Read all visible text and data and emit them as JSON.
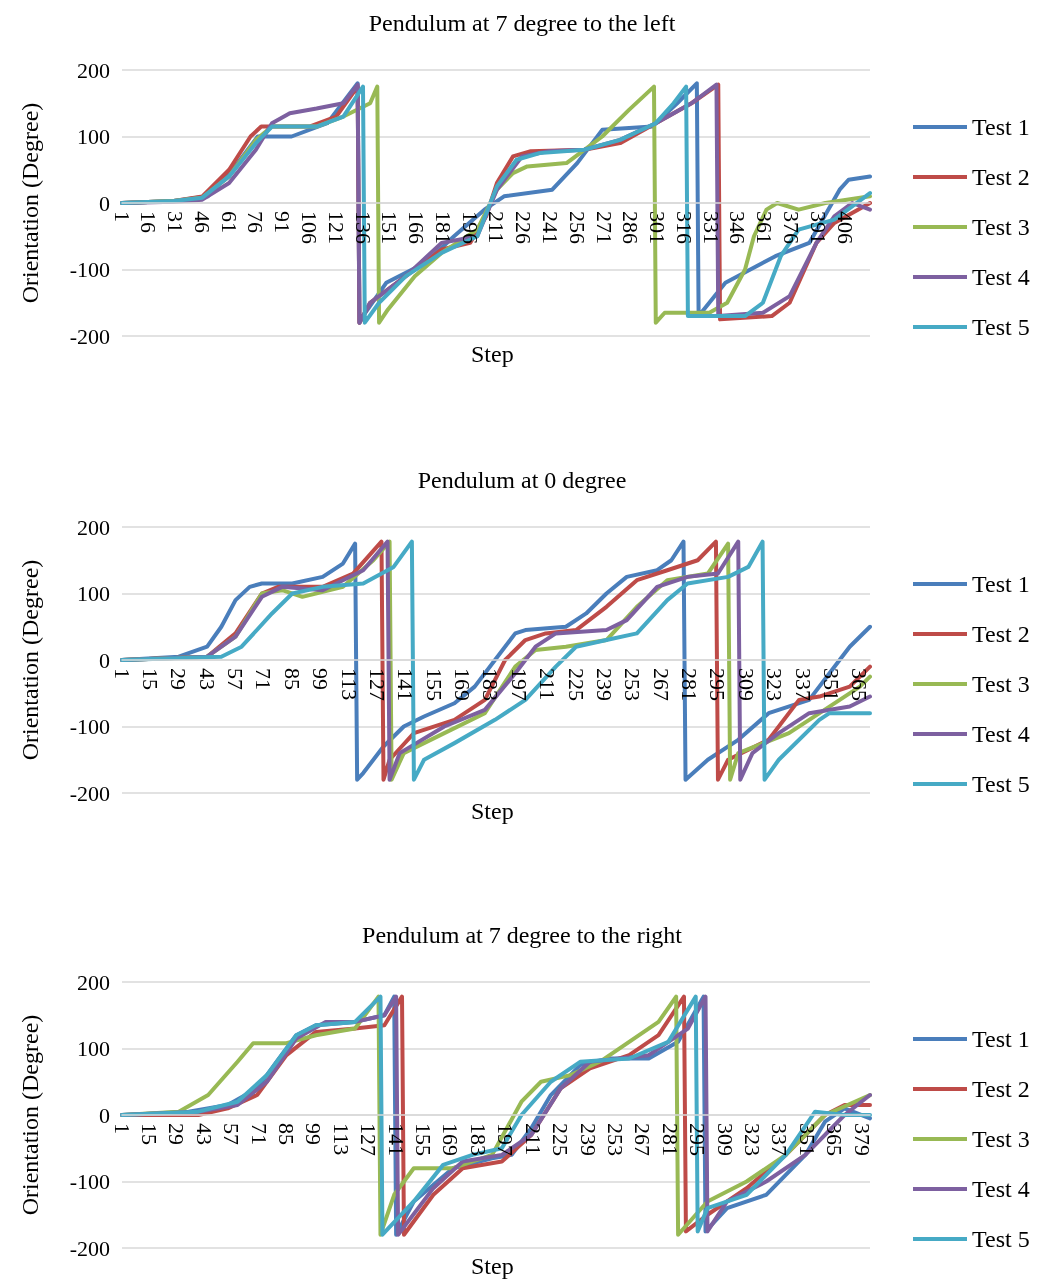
{
  "chart_data": [
    {
      "type": "line",
      "title": "Pendulum at 7 degree to the left",
      "xlabel": "Step",
      "ylabel": "Orientation (Degree)",
      "xlim": [
        1,
        420
      ],
      "xticks": [
        1,
        16,
        31,
        46,
        61,
        76,
        91,
        106,
        121,
        136,
        151,
        166,
        181,
        196,
        211,
        226,
        241,
        256,
        271,
        286,
        301,
        316,
        331,
        346,
        361,
        376,
        391,
        406
      ],
      "ylim": [
        -200,
        200
      ],
      "yticks": [
        -200,
        -100,
        0,
        100,
        200
      ],
      "grid": "y",
      "legend": "right",
      "marker": "none",
      "line_style": "solid",
      "series": [
        {
          "name": "Test 1",
          "color": "#4a7ebb",
          "x": [
            1,
            30,
            49,
            63,
            77,
            96,
            116,
            133,
            134,
            136,
            149,
            171,
            187,
            204,
            215,
            242,
            256,
            270,
            298,
            312,
            323,
            324,
            339,
            367,
            386,
            403,
            408,
            420
          ],
          "values": [
            0,
            3,
            10,
            50,
            100,
            100,
            120,
            180,
            -180,
            -170,
            -120,
            -90,
            -50,
            -10,
            10,
            20,
            60,
            110,
            115,
            150,
            180,
            -170,
            -120,
            -80,
            -60,
            20,
            35,
            40
          ]
        },
        {
          "name": "Test 2",
          "color": "#be4b48",
          "x": [
            1,
            30,
            46,
            61,
            73,
            79,
            106,
            121,
            133,
            134,
            140,
            160,
            180,
            196,
            205,
            211,
            220,
            230,
            260,
            280,
            300,
            320,
            335,
            336,
            365,
            375,
            390,
            400,
            420
          ],
          "values": [
            0,
            3,
            10,
            50,
            100,
            115,
            115,
            130,
            175,
            -180,
            -150,
            -110,
            -70,
            -60,
            -20,
            30,
            70,
            78,
            80,
            90,
            120,
            150,
            178,
            -175,
            -170,
            -150,
            -60,
            -30,
            0
          ]
        },
        {
          "name": "Test 3",
          "color": "#98b954",
          "x": [
            1,
            30,
            46,
            61,
            76,
            85,
            110,
            125,
            140,
            144,
            145,
            150,
            165,
            180,
            200,
            211,
            220,
            228,
            250,
            260,
            270,
            285,
            299,
            300,
            305,
            330,
            340,
            350,
            355,
            362,
            368,
            380,
            395,
            420
          ],
          "values": [
            0,
            3,
            8,
            40,
            95,
            115,
            115,
            130,
            150,
            175,
            -180,
            -160,
            -110,
            -75,
            -40,
            20,
            45,
            55,
            60,
            80,
            100,
            140,
            175,
            -180,
            -165,
            -165,
            -150,
            -100,
            -50,
            -10,
            0,
            -10,
            0,
            10
          ]
        },
        {
          "name": "Test 4",
          "color": "#7d60a0",
          "x": [
            1,
            30,
            46,
            61,
            76,
            85,
            95,
            110,
            125,
            133,
            134,
            140,
            160,
            180,
            200,
            211,
            225,
            240,
            260,
            280,
            300,
            320,
            334,
            335,
            360,
            375,
            390,
            400,
            410,
            420
          ],
          "values": [
            0,
            2,
            5,
            30,
            80,
            120,
            135,
            142,
            150,
            178,
            -180,
            -150,
            -110,
            -60,
            -50,
            20,
            70,
            78,
            80,
            95,
            120,
            150,
            178,
            -170,
            -165,
            -140,
            -60,
            -20,
            0,
            -10
          ]
        },
        {
          "name": "Test 5",
          "color": "#46aac5",
          "x": [
            1,
            30,
            46,
            61,
            76,
            85,
            110,
            125,
            136,
            137,
            145,
            160,
            180,
            200,
            211,
            222,
            235,
            260,
            280,
            300,
            310,
            317,
            318,
            350,
            360,
            370,
            380,
            400,
            420
          ],
          "values": [
            0,
            3,
            8,
            40,
            90,
            115,
            115,
            130,
            175,
            -180,
            -150,
            -110,
            -75,
            -50,
            25,
            65,
            75,
            80,
            95,
            120,
            150,
            175,
            -170,
            -170,
            -150,
            -80,
            -40,
            -25,
            15
          ]
        }
      ]
    },
    {
      "type": "line",
      "title": "Pendulum at 0 degree",
      "xlabel": "Step",
      "ylabel": "Orientation (Degree)",
      "xlim": [
        1,
        370
      ],
      "xticks": [
        1,
        15,
        29,
        43,
        57,
        71,
        85,
        99,
        113,
        127,
        141,
        155,
        169,
        183,
        197,
        211,
        225,
        239,
        253,
        267,
        281,
        295,
        309,
        323,
        337,
        351,
        365
      ],
      "ylim": [
        -200,
        200
      ],
      "yticks": [
        -200,
        -100,
        0,
        100,
        200
      ],
      "grid": "y",
      "legend": "right",
      "marker": "none",
      "line_style": "solid",
      "series": [
        {
          "name": "Test 1",
          "color": "#4a7ebb",
          "x": [
            1,
            29,
            43,
            50,
            57,
            64,
            70,
            85,
            100,
            110,
            116,
            117,
            120,
            130,
            140,
            150,
            165,
            175,
            185,
            195,
            200,
            220,
            230,
            240,
            250,
            265,
            272,
            278,
            279,
            290,
            305,
            320,
            340,
            355,
            360,
            370
          ],
          "values": [
            0,
            5,
            20,
            50,
            90,
            110,
            115,
            115,
            125,
            145,
            175,
            -180,
            -170,
            -130,
            -100,
            -85,
            -65,
            -40,
            0,
            40,
            45,
            50,
            70,
            100,
            125,
            135,
            150,
            178,
            -180,
            -150,
            -120,
            -80,
            -60,
            0,
            20,
            50
          ]
        },
        {
          "name": "Test 2",
          "color": "#be4b48",
          "x": [
            1,
            43,
            57,
            70,
            78,
            100,
            115,
            129,
            130,
            133,
            145,
            165,
            180,
            190,
            200,
            210,
            225,
            240,
            255,
            270,
            285,
            294,
            295,
            300,
            320,
            335,
            345,
            360,
            370
          ],
          "values": [
            0,
            5,
            40,
            100,
            110,
            110,
            130,
            178,
            -180,
            -150,
            -110,
            -90,
            -60,
            0,
            30,
            40,
            45,
            80,
            120,
            135,
            150,
            178,
            -180,
            -150,
            -120,
            -60,
            -55,
            -40,
            -10
          ]
        },
        {
          "name": "Test 3",
          "color": "#98b954",
          "x": [
            1,
            43,
            57,
            70,
            80,
            90,
            110,
            125,
            133,
            134,
            140,
            160,
            180,
            195,
            205,
            220,
            240,
            255,
            270,
            290,
            300,
            301,
            305,
            330,
            350,
            365,
            370
          ],
          "values": [
            0,
            5,
            35,
            100,
            105,
            95,
            110,
            150,
            178,
            -180,
            -140,
            -110,
            -80,
            -10,
            15,
            20,
            30,
            80,
            120,
            130,
            175,
            -180,
            -140,
            -110,
            -70,
            -40,
            -25
          ]
        },
        {
          "name": "Test 4",
          "color": "#7d60a0",
          "x": [
            1,
            43,
            57,
            70,
            80,
            100,
            120,
            132,
            133,
            138,
            160,
            180,
            195,
            205,
            215,
            240,
            250,
            265,
            280,
            295,
            305,
            306,
            312,
            325,
            340,
            360,
            370
          ],
          "values": [
            0,
            5,
            35,
            95,
            110,
            105,
            135,
            178,
            -180,
            -140,
            -100,
            -75,
            -20,
            20,
            40,
            45,
            60,
            110,
            125,
            130,
            178,
            -180,
            -140,
            -110,
            -80,
            -70,
            -55
          ]
        },
        {
          "name": "Test 5",
          "color": "#46aac5",
          "x": [
            1,
            50,
            60,
            75,
            85,
            100,
            120,
            135,
            144,
            145,
            150,
            165,
            185,
            200,
            215,
            225,
            240,
            255,
            270,
            280,
            300,
            310,
            317,
            318,
            325,
            345,
            350,
            370
          ],
          "values": [
            0,
            5,
            20,
            70,
            100,
            110,
            115,
            140,
            178,
            -180,
            -150,
            -125,
            -90,
            -60,
            -10,
            20,
            30,
            40,
            90,
            115,
            125,
            140,
            178,
            -180,
            -150,
            -90,
            -80,
            -80
          ]
        }
      ]
    },
    {
      "type": "line",
      "title": "Pendulum at 7 degree to the right",
      "xlabel": "Step",
      "ylabel": "Orientation (Degree)",
      "xlim": [
        1,
        383
      ],
      "xticks": [
        1,
        15,
        29,
        43,
        57,
        71,
        85,
        99,
        113,
        127,
        141,
        155,
        169,
        183,
        197,
        211,
        225,
        239,
        253,
        267,
        281,
        295,
        309,
        323,
        337,
        351,
        365,
        379
      ],
      "ylim": [
        -200,
        200
      ],
      "yticks": [
        -200,
        -100,
        0,
        100,
        200
      ],
      "grid": "y",
      "legend": "right",
      "marker": "none",
      "line_style": "solid",
      "series": [
        {
          "name": "Test 1",
          "color": "#4a7ebb",
          "x": [
            1,
            35,
            55,
            70,
            80,
            90,
            100,
            120,
            135,
            140,
            141,
            150,
            170,
            190,
            200,
            210,
            220,
            235,
            250,
            270,
            285,
            298,
            299,
            310,
            330,
            350,
            360,
            370,
            383
          ],
          "values": [
            0,
            5,
            15,
            40,
            80,
            120,
            135,
            140,
            150,
            178,
            -180,
            -130,
            -80,
            -65,
            -60,
            -20,
            30,
            75,
            85,
            85,
            110,
            178,
            -175,
            -140,
            -120,
            -60,
            -10,
            10,
            -5
          ]
        },
        {
          "name": "Test 2",
          "color": "#be4b48",
          "x": [
            1,
            40,
            55,
            70,
            85,
            100,
            120,
            135,
            144,
            145,
            160,
            175,
            195,
            210,
            225,
            240,
            260,
            275,
            288,
            289,
            300,
            320,
            340,
            360,
            370,
            383
          ],
          "values": [
            0,
            0,
            10,
            30,
            90,
            125,
            130,
            135,
            178,
            -180,
            -120,
            -80,
            -70,
            -30,
            40,
            70,
            90,
            120,
            178,
            -175,
            -150,
            -110,
            -60,
            0,
            15,
            15
          ]
        },
        {
          "name": "Test 3",
          "color": "#98b954",
          "x": [
            1,
            30,
            45,
            60,
            68,
            85,
            100,
            120,
            132,
            133,
            140,
            150,
            170,
            190,
            205,
            215,
            230,
            245,
            260,
            275,
            284,
            285,
            300,
            320,
            340,
            360,
            383
          ],
          "values": [
            0,
            5,
            30,
            80,
            108,
            108,
            120,
            130,
            178,
            -180,
            -120,
            -80,
            -80,
            -60,
            20,
            50,
            60,
            80,
            110,
            140,
            178,
            -180,
            -130,
            -100,
            -60,
            0,
            30
          ]
        },
        {
          "name": "Test 4",
          "color": "#7d60a0",
          "x": [
            1,
            40,
            60,
            75,
            90,
            105,
            120,
            135,
            141,
            142,
            160,
            175,
            195,
            210,
            225,
            240,
            270,
            290,
            299,
            300,
            310,
            330,
            350,
            370,
            383
          ],
          "values": [
            0,
            5,
            15,
            50,
            115,
            140,
            140,
            150,
            178,
            -180,
            -110,
            -70,
            -60,
            -30,
            40,
            80,
            90,
            130,
            178,
            -175,
            -130,
            -100,
            -60,
            0,
            30
          ]
        },
        {
          "name": "Test 5",
          "color": "#46aac5",
          "x": [
            1,
            40,
            60,
            75,
            90,
            100,
            120,
            133,
            134,
            150,
            165,
            180,
            195,
            205,
            220,
            235,
            260,
            280,
            294,
            295,
            300,
            320,
            340,
            355,
            370,
            383
          ],
          "values": [
            0,
            5,
            20,
            60,
            120,
            135,
            140,
            178,
            -180,
            -130,
            -75,
            -60,
            -50,
            0,
            50,
            80,
            85,
            110,
            178,
            -175,
            -140,
            -120,
            -60,
            5,
            0,
            0
          ]
        }
      ]
    }
  ]
}
